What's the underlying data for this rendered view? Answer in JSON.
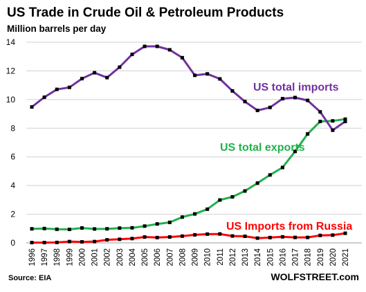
{
  "chart_data": {
    "type": "line",
    "title": "US Trade in Crude Oil & Petroleum Products",
    "ylabel": "Million barrels per day",
    "ylim": [
      0,
      14
    ],
    "yticks": [
      0,
      2,
      4,
      6,
      8,
      10,
      12,
      14
    ],
    "grid": true,
    "x": [
      "1996",
      "1997",
      "1998",
      "1999",
      "2000",
      "2001",
      "2002",
      "2003",
      "2004",
      "2005",
      "2006",
      "2007",
      "2008",
      "2009",
      "2010",
      "2011",
      "2012",
      "2013",
      "2014",
      "2015",
      "2016",
      "2017",
      "2018",
      "2019",
      "2020",
      "2021"
    ],
    "series": [
      {
        "name": "US total imports",
        "color": "#7030a0",
        "values": [
          9.48,
          10.16,
          10.71,
          10.85,
          11.46,
          11.87,
          11.53,
          12.26,
          13.15,
          13.71,
          13.71,
          13.47,
          12.92,
          11.69,
          11.79,
          11.44,
          10.6,
          9.86,
          9.24,
          9.45,
          10.06,
          10.14,
          9.94,
          9.14,
          7.86,
          8.47
        ]
      },
      {
        "name": "US total exports",
        "color": "#21b04b",
        "values": [
          0.98,
          1.0,
          0.95,
          0.94,
          1.04,
          0.97,
          0.98,
          1.03,
          1.05,
          1.17,
          1.32,
          1.43,
          1.8,
          2.02,
          2.35,
          2.99,
          3.21,
          3.62,
          4.17,
          4.74,
          5.26,
          6.38,
          7.6,
          8.47,
          8.51,
          8.63
        ]
      },
      {
        "name": "US Imports from Russia",
        "color": "#ff0000",
        "values": [
          0.02,
          0.02,
          0.03,
          0.09,
          0.07,
          0.09,
          0.21,
          0.25,
          0.3,
          0.41,
          0.37,
          0.41,
          0.47,
          0.56,
          0.61,
          0.62,
          0.48,
          0.46,
          0.33,
          0.37,
          0.42,
          0.38,
          0.38,
          0.52,
          0.54,
          0.67
        ]
      }
    ]
  },
  "footer": {
    "source": "Source: EIA",
    "brand": "WOLFSTREET.com"
  }
}
